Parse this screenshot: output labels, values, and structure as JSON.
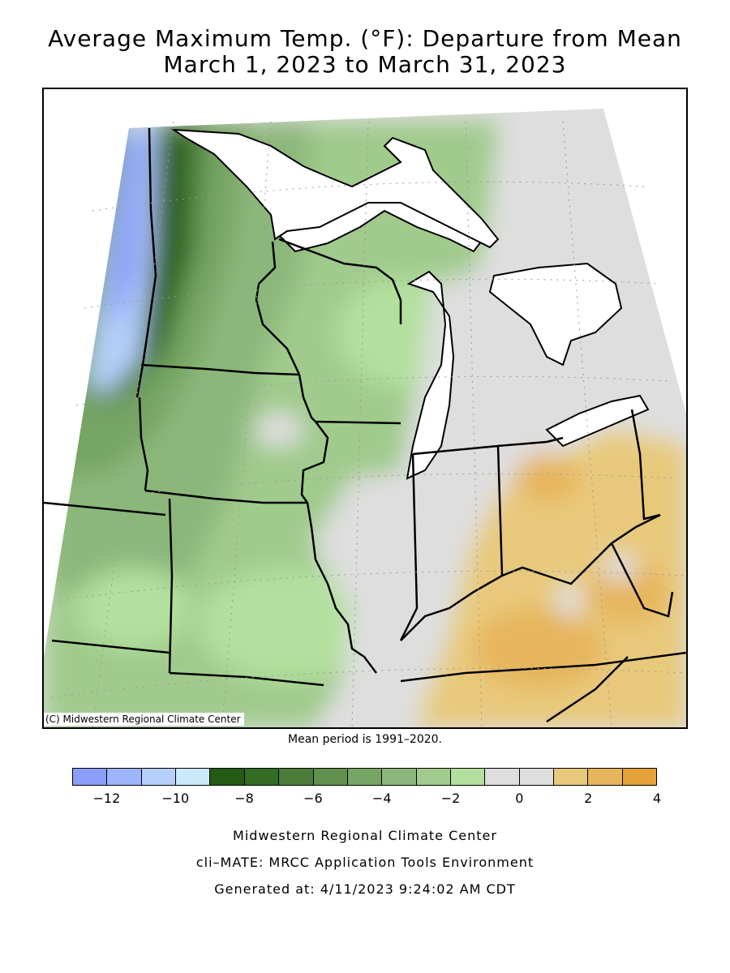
{
  "title_line1": "Average Maximum Temp. (°F): Departure from Mean",
  "title_line2": "March 1, 2023 to March 31, 2023",
  "map": {
    "copyright": "(C) Midwestern Regional Climate Center",
    "regions_depicted": [
      "Minnesota",
      "Wisconsin",
      "Michigan",
      "Iowa",
      "Illinois",
      "Indiana",
      "Ohio",
      "Missouri",
      "Kentucky"
    ],
    "pattern": {
      "northwest_minnesota": -12,
      "minnesota_west": -8,
      "wisconsin_iowa": -4,
      "illinois_indiana_michigan": 0,
      "ohio_kentucky": 2
    }
  },
  "mean_period": "Mean period is 1991–2020.",
  "legend": {
    "colors": [
      "#8a9df8",
      "#9fb5fb",
      "#b6cffb",
      "#cce9fb",
      "#235a14",
      "#336c23",
      "#4b7d39",
      "#61904e",
      "#76a463",
      "#8cb77a",
      "#a0cb8c",
      "#b3e09e",
      "#dedede",
      "#dedede",
      "#e8c97c",
      "#e7b55b",
      "#e6a23a"
    ],
    "tick_labels": [
      "−12",
      "−10",
      "−8",
      "−6",
      "−4",
      "−2",
      "0",
      "2",
      "4"
    ]
  },
  "footer": {
    "line1": "Midwestern Regional Climate Center",
    "line2": "cli–MATE: MRCC Application Tools Environment",
    "line3": "Generated at: 4/11/2023 9:24:02 AM CDT"
  }
}
